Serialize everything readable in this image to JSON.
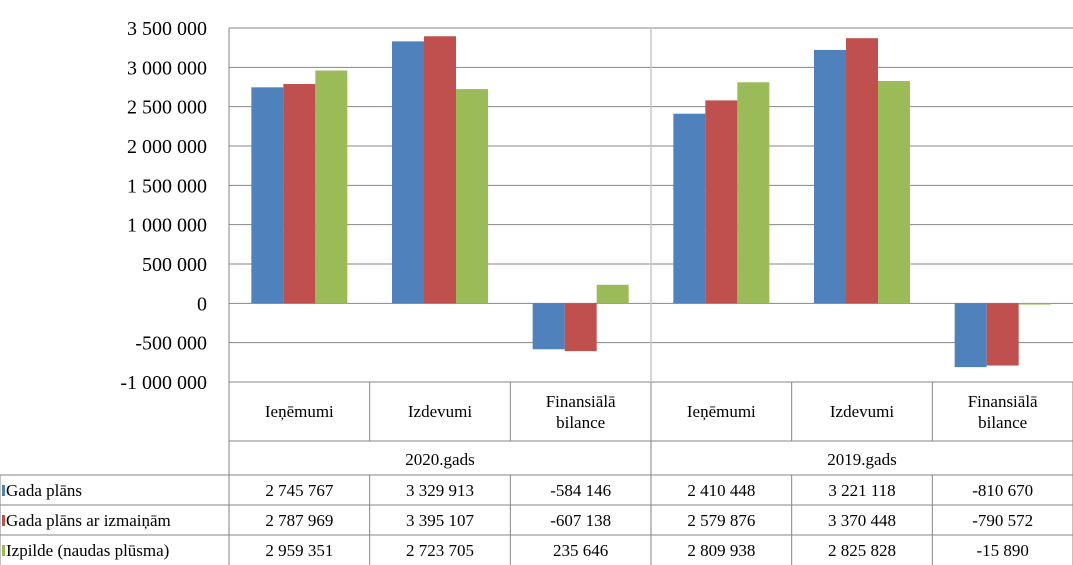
{
  "chart_data": {
    "type": "bar",
    "categories": [
      "Ieņēmumi",
      "Izdevumi",
      "Finansiālā bilance",
      "Ieņēmumi",
      "Izdevumi",
      "Finansiālā bilance"
    ],
    "groups": [
      {
        "label": "2020.gads",
        "categories": [
          0,
          1,
          2
        ]
      },
      {
        "label": "2019.gads",
        "categories": [
          3,
          4,
          5
        ]
      }
    ],
    "series": [
      {
        "name": "Gada plāns",
        "color": "#4F81BD",
        "values": [
          2745767,
          3329913,
          -584146,
          2410448,
          3221118,
          -810670
        ],
        "labels": [
          "2 745 767",
          "3 329 913",
          "-584 146",
          "2 410 448",
          "3 221 118",
          "-810 670"
        ]
      },
      {
        "name": "Gada plāns ar izmaiņām",
        "color": "#C0504D",
        "values": [
          2787969,
          3395107,
          -607138,
          2579876,
          3370448,
          -790572
        ],
        "labels": [
          "2 787 969",
          "3 395 107",
          "-607 138",
          "2 579 876",
          "3 370 448",
          "-790 572"
        ]
      },
      {
        "name": "Izpilde (naudas plūsma)",
        "color": "#9BBB59",
        "values": [
          2959351,
          2723705,
          235646,
          2809938,
          2825828,
          -15890
        ],
        "labels": [
          "2 959 351",
          "2 723 705",
          "235 646",
          "2 809 938",
          "2 825 828",
          "-15 890"
        ]
      }
    ],
    "yticks": [
      3500000,
      3000000,
      2500000,
      2000000,
      1500000,
      1000000,
      500000,
      0,
      -500000,
      -1000000
    ],
    "ytick_labels": [
      "3 500 000",
      "3 000 000",
      "2 500 000",
      "2 000 000",
      "1 500 000",
      "1 000 000",
      "500 000",
      "0",
      "-500 000",
      "-1 000 000"
    ],
    "ylim": [
      -1000000,
      3500000
    ],
    "grid": true,
    "legend": "data-table"
  }
}
